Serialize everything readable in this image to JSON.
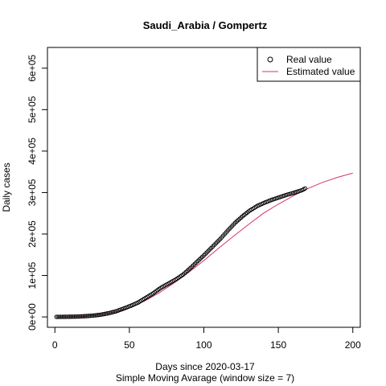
{
  "chart_data": {
    "type": "scatter",
    "title": "Saudi_Arabia / Gompertz",
    "xlabel": "Days since 2020-03-17",
    "subtitle": "Simple Moving Avarage (window size = 7)",
    "ylabel": "Daily cases",
    "xlim": [
      -5,
      205
    ],
    "ylim": [
      -25000,
      650000
    ],
    "x_ticks": [
      0,
      50,
      100,
      150,
      200
    ],
    "x_tick_labels": [
      "0",
      "50",
      "100",
      "150",
      "200"
    ],
    "y_ticks": [
      0,
      100000,
      200000,
      300000,
      400000,
      500000,
      600000
    ],
    "y_tick_labels": [
      "0e+00",
      "1e+05",
      "2e+05",
      "3e+05",
      "4e+05",
      "5e+05",
      "6e+05"
    ],
    "grid": false,
    "legend": {
      "position": "top-right",
      "entries": [
        {
          "label": "Real value",
          "symbol": "circle",
          "color": "#000000"
        },
        {
          "label": "Estimated value",
          "symbol": "line",
          "color": "#d6336c"
        }
      ]
    },
    "series": [
      {
        "name": "Real value",
        "style": "points",
        "color": "#000000",
        "x": [
          1,
          6,
          11,
          16,
          21,
          26,
          31,
          36,
          41,
          46,
          51,
          56,
          61,
          66,
          71,
          76,
          81,
          86,
          91,
          96,
          101,
          106,
          111,
          116,
          121,
          126,
          131,
          136,
          141,
          146,
          151,
          156,
          161,
          166,
          168
        ],
        "y": [
          100,
          300,
          600,
          1000,
          2000,
          3400,
          5500,
          9000,
          13500,
          20000,
          27000,
          35000,
          46000,
          57000,
          70000,
          80000,
          90000,
          102000,
          118000,
          135000,
          152000,
          170000,
          188000,
          208000,
          227000,
          243000,
          257000,
          268000,
          276000,
          283000,
          289000,
          295000,
          300000,
          306000,
          310000
        ]
      },
      {
        "name": "Estimated value",
        "style": "line",
        "color": "#d6336c",
        "x": [
          1,
          10,
          20,
          30,
          40,
          50,
          60,
          70,
          80,
          90,
          100,
          110,
          120,
          130,
          140,
          150,
          160,
          170,
          180,
          190,
          200
        ],
        "y": [
          0,
          300,
          1500,
          5000,
          11500,
          22000,
          38000,
          58000,
          82000,
          108000,
          136000,
          166000,
          195000,
          223000,
          250000,
          272000,
          292000,
          310000,
          325000,
          337000,
          347000
        ]
      }
    ]
  }
}
